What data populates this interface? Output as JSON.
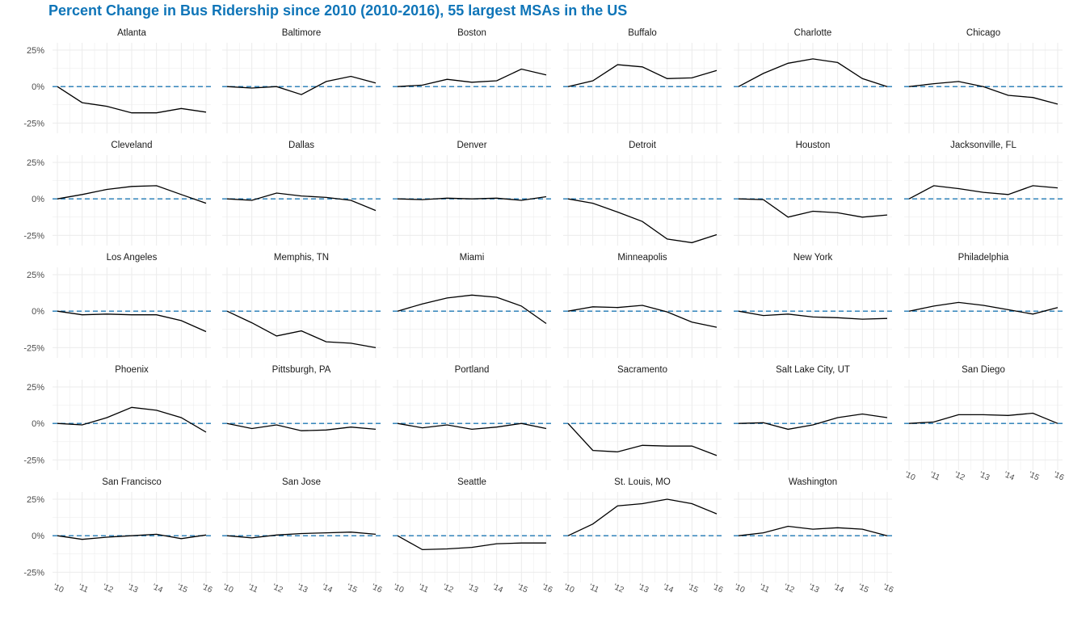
{
  "title": "Percent Change in Bus Ridership since 2010 (2010-2016), 55 largest MSAs in the US",
  "colors": {
    "title": "#0f75b8",
    "reference_line": "#1f78b4",
    "series_line": "#000000",
    "grid": "#ebebeb"
  },
  "chart_data": {
    "type": "line",
    "layout": "facet-grid",
    "title": "Percent Change in Bus Ridership since 2010 (2010-2016), 55 largest MSAs in the US",
    "x": [
      "'10",
      "'11",
      "'12",
      "'13",
      "'14",
      "'15",
      "'16"
    ],
    "y_ticks": [
      "25%",
      "0%",
      "-25%"
    ],
    "y_tick_values": [
      25,
      0,
      -25
    ],
    "ylim": [
      -32,
      30
    ],
    "reference_line": 0,
    "grid": true,
    "panels": [
      {
        "name": "Atlanta",
        "values": [
          0,
          -11,
          -13.5,
          -18,
          -18,
          -15,
          -17.5
        ]
      },
      {
        "name": "Baltimore",
        "values": [
          0,
          -1,
          0,
          -5.5,
          3.5,
          7,
          2.5
        ]
      },
      {
        "name": "Boston",
        "values": [
          0,
          1,
          5,
          3,
          4,
          12,
          8
        ]
      },
      {
        "name": "Buffalo",
        "values": [
          0,
          4,
          15,
          13.5,
          5.5,
          6,
          11
        ]
      },
      {
        "name": "Charlotte",
        "values": [
          0,
          9,
          16,
          19,
          16.5,
          5.5,
          0
        ]
      },
      {
        "name": "Chicago",
        "values": [
          0,
          2,
          3.5,
          0,
          -6,
          -7.5,
          -12
        ]
      },
      {
        "name": "Cleveland",
        "values": [
          0,
          3,
          6.5,
          8.5,
          9,
          3,
          -3
        ]
      },
      {
        "name": "Dallas",
        "values": [
          0,
          -1,
          4,
          2,
          1,
          -1,
          -8
        ]
      },
      {
        "name": "Denver",
        "values": [
          0,
          -0.5,
          0.5,
          0,
          0.5,
          -1,
          1.5
        ]
      },
      {
        "name": "Detroit",
        "values": [
          0,
          -3,
          -9,
          -15.5,
          -27.5,
          -30,
          -24.5
        ]
      },
      {
        "name": "Houston",
        "values": [
          0,
          -0.5,
          -12.5,
          -8.5,
          -9.5,
          -12.5,
          -11
        ]
      },
      {
        "name": "Jacksonville, FL",
        "values": [
          0,
          9,
          7,
          4.5,
          3,
          9,
          7.5
        ]
      },
      {
        "name": "Los Angeles",
        "values": [
          0,
          -2.5,
          -2,
          -2.5,
          -2.5,
          -6.5,
          -14
        ]
      },
      {
        "name": "Memphis, TN",
        "values": [
          0,
          -8,
          -17,
          -13.5,
          -21,
          -22,
          -25
        ]
      },
      {
        "name": "Miami",
        "values": [
          0,
          5,
          9,
          11,
          9.5,
          3.5,
          -8.5
        ]
      },
      {
        "name": "Minneapolis",
        "values": [
          0,
          3,
          2.5,
          4,
          -0.5,
          -7.5,
          -11
        ]
      },
      {
        "name": "New York",
        "values": [
          0,
          -3,
          -2,
          -4,
          -4.5,
          -5.5,
          -5
        ]
      },
      {
        "name": "Philadelphia",
        "values": [
          0,
          3.5,
          6,
          4,
          1,
          -2,
          2.5
        ]
      },
      {
        "name": "Phoenix",
        "values": [
          0,
          -1,
          4,
          11,
          9,
          4,
          -6
        ]
      },
      {
        "name": "Pittsburgh, PA",
        "values": [
          0,
          -3.5,
          -1,
          -5,
          -4.5,
          -2.5,
          -4
        ]
      },
      {
        "name": "Portland",
        "values": [
          0,
          -3,
          -1,
          -4,
          -2.5,
          0,
          -3.5
        ]
      },
      {
        "name": "Sacramento",
        "values": [
          0,
          -18.5,
          -19.5,
          -15,
          -15.5,
          -15.5,
          -22
        ]
      },
      {
        "name": "Salt Lake City, UT",
        "values": [
          0,
          0.5,
          -4,
          -1,
          4,
          6.5,
          4
        ]
      },
      {
        "name": "San Diego",
        "values": [
          0,
          1,
          6,
          6,
          5.5,
          7,
          0
        ]
      },
      {
        "name": "San Francisco",
        "values": [
          0,
          -2.5,
          -1,
          0,
          1,
          -2,
          0.5
        ]
      },
      {
        "name": "San Jose",
        "values": [
          0,
          -1.5,
          0.5,
          1.5,
          2,
          2.5,
          1
        ]
      },
      {
        "name": "Seattle",
        "values": [
          0,
          -9.5,
          -9,
          -8,
          -5.5,
          -5,
          -5
        ]
      },
      {
        "name": "St. Louis, MO",
        "values": [
          0,
          8,
          20.5,
          22,
          25,
          22,
          15
        ]
      },
      {
        "name": "Washington",
        "values": [
          0,
          2,
          6.5,
          4.5,
          5.5,
          4.5,
          0
        ]
      }
    ]
  }
}
